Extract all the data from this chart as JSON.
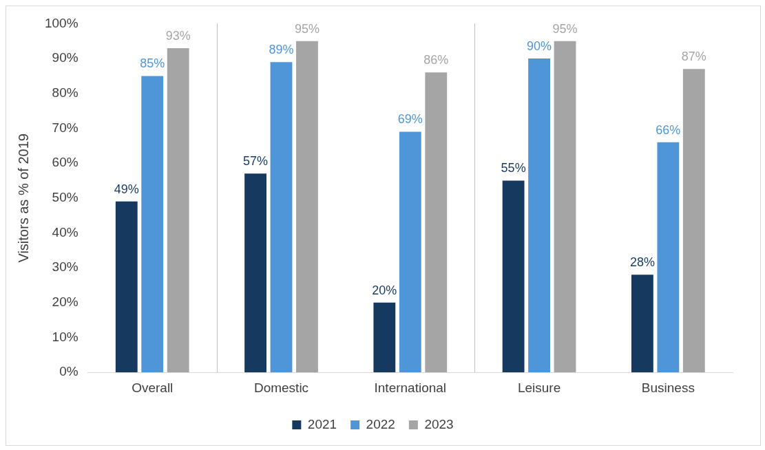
{
  "chart_data": {
    "type": "bar",
    "ylabel": "Visitors as % of 2019",
    "categories": [
      "Overall",
      "Domestic",
      "International",
      "Leisure",
      "Business"
    ],
    "series": [
      {
        "name": "2021",
        "color": "#163a5f",
        "values": [
          49,
          57,
          20,
          55,
          28
        ],
        "value_labels": [
          "49%",
          "57%",
          "20%",
          "55%",
          "28%"
        ]
      },
      {
        "name": "2022",
        "color": "#4f96d8",
        "values": [
          85,
          89,
          69,
          90,
          66
        ],
        "value_labels": [
          "85%",
          "89%",
          "69%",
          "90%",
          "66%"
        ]
      },
      {
        "name": "2023",
        "color": "#a5a5a5",
        "values": [
          93,
          95,
          86,
          95,
          87
        ],
        "value_labels": [
          "93%",
          "95%",
          "86%",
          "95%",
          "87%"
        ]
      }
    ],
    "ylim": [
      0,
      100
    ],
    "yticks": [
      {
        "value": 0,
        "label": "0%"
      },
      {
        "value": 10,
        "label": "10%"
      },
      {
        "value": 20,
        "label": "20%"
      },
      {
        "value": 30,
        "label": "30%"
      },
      {
        "value": 40,
        "label": "40%"
      },
      {
        "value": 50,
        "label": "50%"
      },
      {
        "value": 60,
        "label": "60%"
      },
      {
        "value": 70,
        "label": "70%"
      },
      {
        "value": 80,
        "label": "80%"
      },
      {
        "value": 90,
        "label": "90%"
      },
      {
        "value": 100,
        "label": "100%"
      }
    ],
    "grid": false,
    "legend": "bottom"
  }
}
